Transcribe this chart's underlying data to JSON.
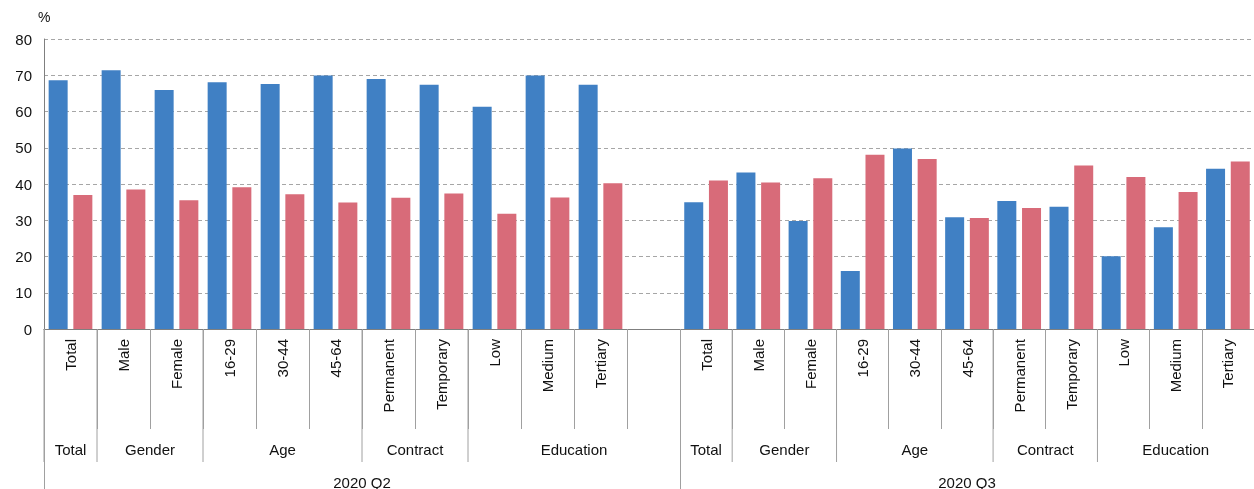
{
  "chart_data": [
    {
      "type": "bar",
      "ylabel": "%",
      "xlabel": "2020 Q2",
      "categories": [
        "Total",
        "Male",
        "Female",
        "16-29",
        "30-44",
        "45-64",
        "Permanent",
        "Temporary",
        "Low",
        "Medium",
        "Tertiary",
        null
      ],
      "series": [
        {
          "color": "#4080c4",
          "values": [
            68.6,
            71.4,
            65.9,
            68.1,
            67.6,
            69.9,
            69.0,
            67.4,
            61.3,
            69.9,
            67.4,
            null
          ]
        },
        {
          "color": "#d86b79",
          "values": [
            37.0,
            38.5,
            35.5,
            39.1,
            37.2,
            34.9,
            36.2,
            37.4,
            31.8,
            36.3,
            40.2,
            null
          ]
        }
      ],
      "annotations": [
        "Total",
        "Gender",
        "Age",
        "Contract",
        "Education"
      ],
      "ylim": [
        0,
        80
      ],
      "yticks": [
        0,
        10,
        20,
        30,
        40,
        50,
        60,
        70,
        80
      ],
      "grid": "y"
    },
    {
      "type": "bar",
      "xlabel": "2020 Q3",
      "categories": [
        "Total",
        "Male",
        "Female",
        "16-29",
        "30-44",
        "45-64",
        "Permanent",
        "Temporary",
        "Low",
        "Medium",
        "Tertiary"
      ],
      "series": [
        {
          "color": "#4080c4",
          "values": [
            35.0,
            43.2,
            29.8,
            16.0,
            49.8,
            30.8,
            35.3,
            33.7,
            20.1,
            28.1,
            44.2
          ]
        },
        {
          "color": "#d86b79",
          "values": [
            41.0,
            40.4,
            41.6,
            48.1,
            46.9,
            30.6,
            33.4,
            45.1,
            41.9,
            37.8,
            46.2
          ]
        }
      ],
      "annotations": [
        "Total",
        "Gender",
        "Age",
        "Contract",
        "Education"
      ],
      "ylim": [
        0,
        80
      ],
      "yticks": [
        0,
        10,
        20,
        30,
        40,
        50,
        60,
        70,
        80
      ],
      "grid": "y",
      "tick_labels": "x"
    }
  ]
}
